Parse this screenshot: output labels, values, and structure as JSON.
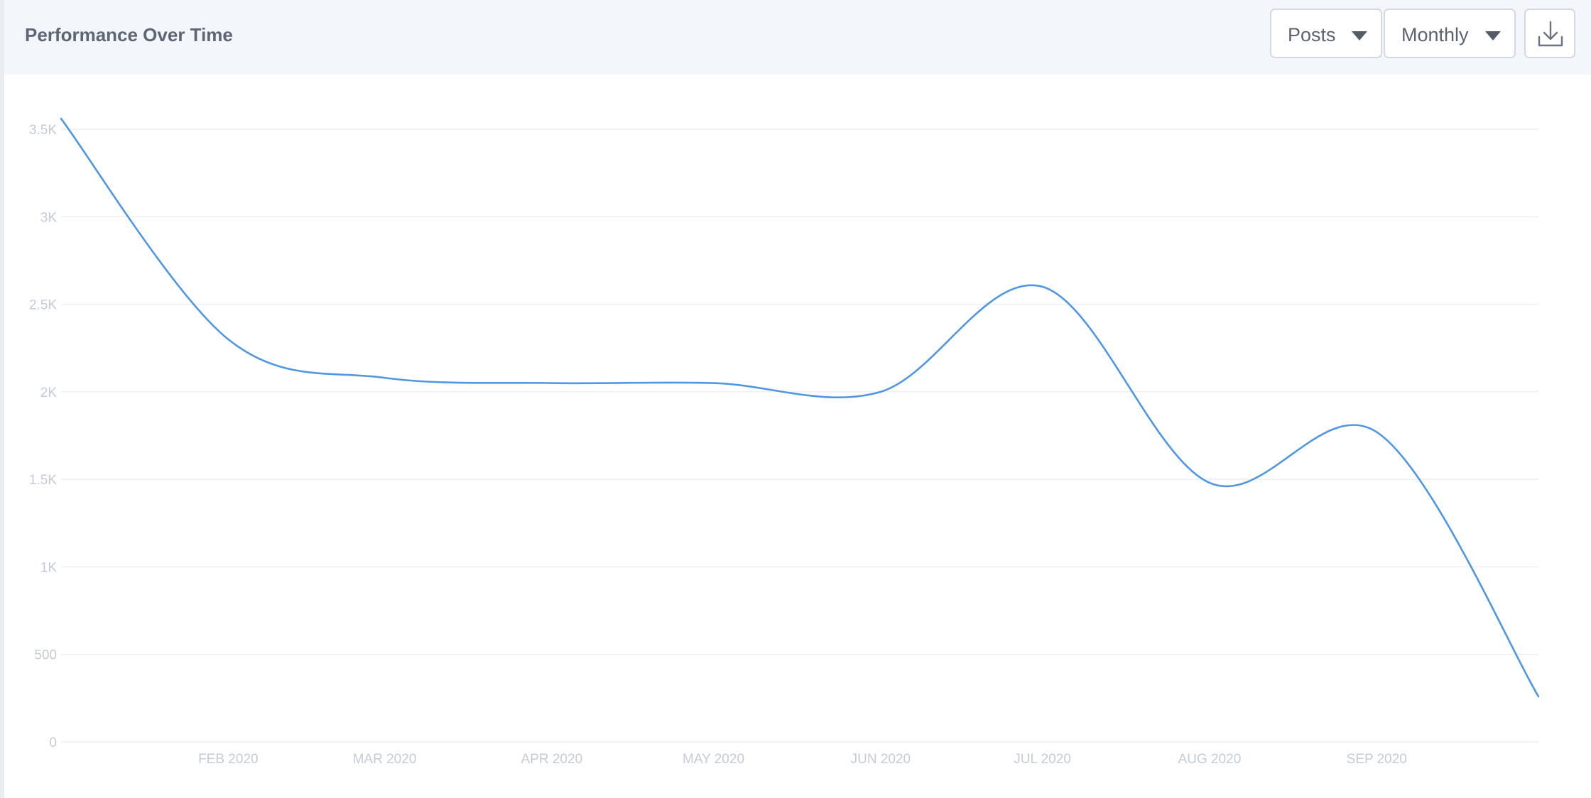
{
  "header": {
    "title": "Performance Over Time",
    "metric_dropdown": {
      "selected": "Posts"
    },
    "interval_dropdown": {
      "selected": "Monthly"
    },
    "download_icon": "download-icon"
  },
  "colors": {
    "line": "#4f97e3",
    "gridline": "#eceff3",
    "tick_text": "#c5cbd6",
    "header_bg": "#f3f6fa"
  },
  "chart_data": {
    "type": "line",
    "title": "",
    "xlabel": "",
    "ylabel": "",
    "ylim": [
      0,
      3500
    ],
    "yticks": [
      0,
      500,
      1000,
      1500,
      2000,
      2500,
      3000,
      3500
    ],
    "ytick_labels": [
      "0",
      "500",
      "1K",
      "1.5K",
      "2K",
      "2.5K",
      "3K",
      "3.5K"
    ],
    "x": [
      "2020-01-01",
      "2020-02-01",
      "2020-03-01",
      "2020-04-01",
      "2020-05-01",
      "2020-06-01",
      "2020-07-01",
      "2020-08-01",
      "2020-09-01",
      "2020-10-01"
    ],
    "x_tick_labels": [
      "FEB 2020",
      "MAR 2020",
      "APR 2020",
      "MAY 2020",
      "JUN 2020",
      "JUL 2020",
      "AUG 2020",
      "SEP 2020"
    ],
    "series": [
      {
        "values": [
          3560,
          2300,
          2080,
          2050,
          2050,
          2000,
          2600,
          1480,
          1770,
          260
        ]
      }
    ],
    "grid": true,
    "legend": "none"
  }
}
